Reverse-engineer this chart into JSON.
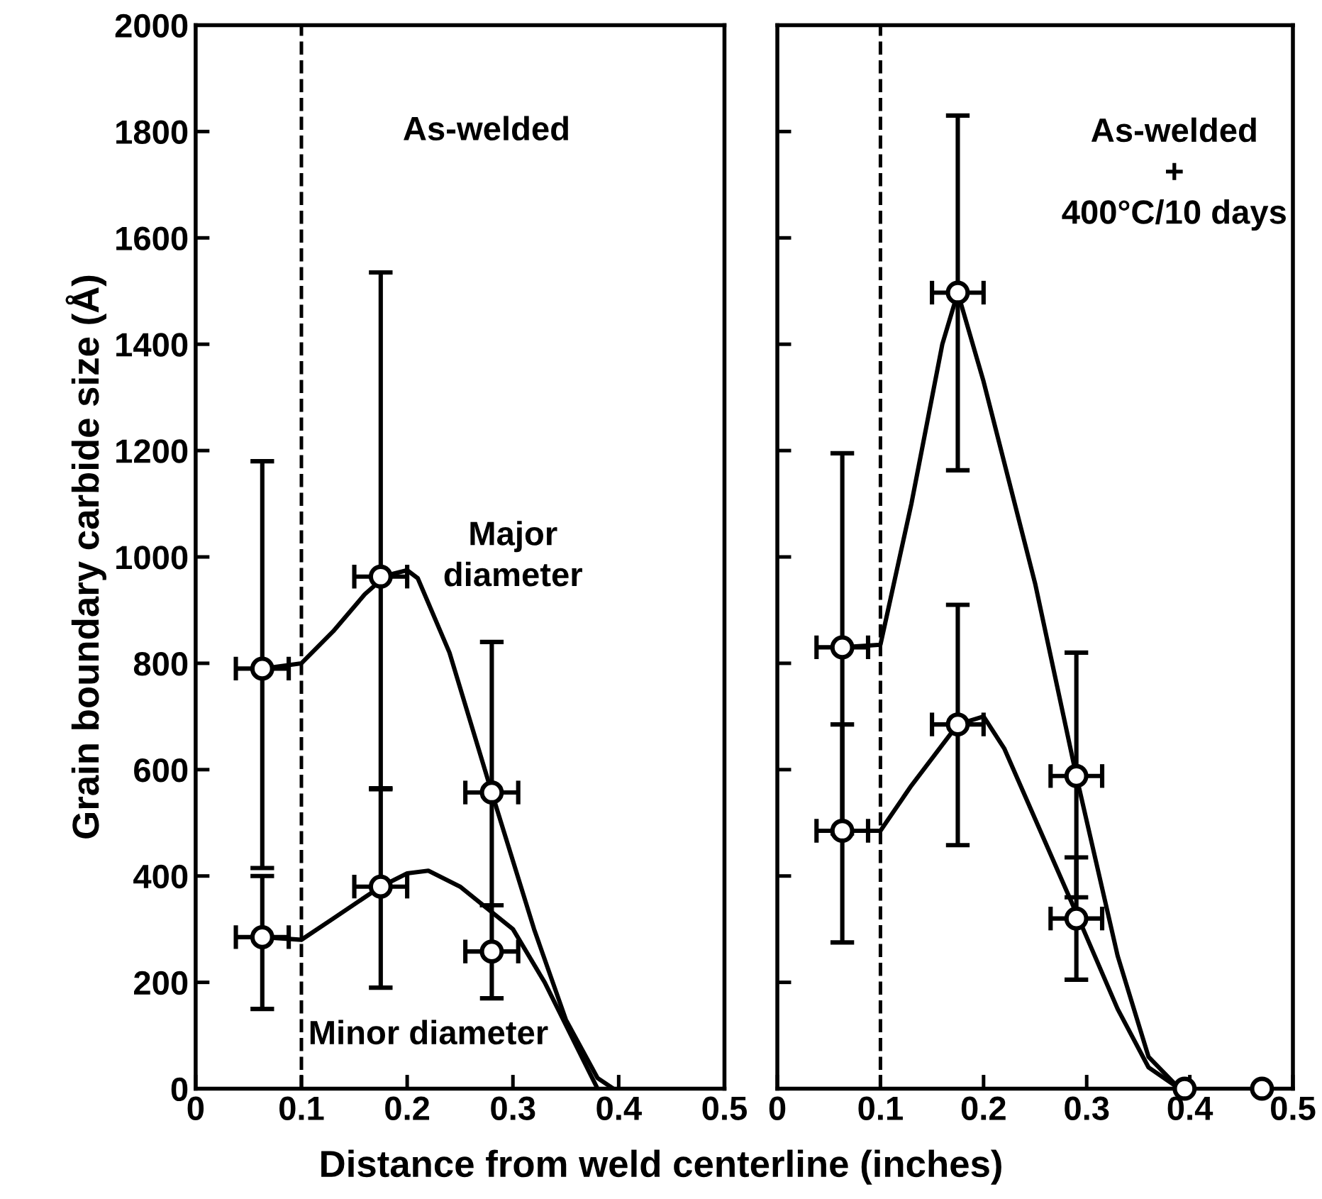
{
  "chart_data": [
    {
      "type": "line",
      "ylabel": "Grain boundary carbide size (Å)",
      "xlabel": "Distance from weld centerline (inches)",
      "xlim": [
        0,
        0.5
      ],
      "xticks": [
        0,
        {
          "value": 0.1,
          "label": "0.1"
        },
        {
          "value": 0.2,
          "label": "0.2"
        },
        {
          "value": 0.3,
          "label": "0.3"
        },
        {
          "value": 0.4,
          "label": "0.4"
        },
        {
          "value": 0.5,
          "label": "0.5"
        }
      ],
      "ylim": [
        0,
        2000
      ],
      "yticks": [
        0,
        200,
        400,
        600,
        800,
        1000,
        1200,
        1400,
        1600,
        1800,
        2000
      ],
      "grid": false,
      "ref_lines": [
        {
          "axis": "x",
          "value": 0.1,
          "color": "#000000",
          "line_style": "dashed"
        }
      ],
      "annotations": [
        "As-welded",
        "Major\ndiameter",
        "Minor diameter"
      ],
      "series": [
        {
          "color": "#000000",
          "x": [
            0.063,
            0.1,
            0.13,
            0.16,
            0.18,
            0.2,
            0.21,
            0.24,
            0.28,
            0.32,
            0.35,
            0.38,
            0.395
          ],
          "values": [
            790,
            800,
            860,
            930,
            965,
            975,
            960,
            820,
            557,
            300,
            130,
            20,
            0
          ]
        },
        {
          "color": "#000000",
          "x": [
            0.063,
            0.1,
            0.13,
            0.175,
            0.2,
            0.22,
            0.25,
            0.3,
            0.33,
            0.36,
            0.38
          ],
          "values": [
            285,
            280,
            320,
            380,
            405,
            410,
            380,
            300,
            200,
            80,
            0
          ]
        },
        {
          "type": "scatter",
          "marker": "circle",
          "color": "#000000",
          "x": [
            0.063,
            0.175,
            0.28
          ],
          "values": [
            790,
            963,
            557
          ],
          "errors": [
            [
              415,
              1180
            ],
            [
              565,
              1535
            ],
            [
              345,
              840
            ]
          ],
          "xerrors": [
            0.025,
            0.025,
            0.025
          ]
        },
        {
          "type": "scatter",
          "marker": "circle",
          "color": "#000000",
          "x": [
            0.063,
            0.175,
            0.28
          ],
          "values": [
            285,
            380,
            258
          ],
          "errors": [
            [
              150,
              400
            ],
            [
              190,
              563
            ],
            [
              170,
              345
            ]
          ],
          "xerrors": [
            0.025,
            0.025,
            0.025
          ]
        }
      ]
    },
    {
      "type": "line",
      "xlim": [
        0,
        0.5
      ],
      "xticks": [
        0,
        {
          "value": 0.1,
          "label": "0.1"
        },
        {
          "value": 0.2,
          "label": "0.2"
        },
        {
          "value": 0.3,
          "label": "0.3"
        },
        {
          "value": 0.4,
          "label": "0.4"
        },
        {
          "value": 0.5,
          "label": "0.5"
        }
      ],
      "ylim": [
        0,
        2000
      ],
      "yticks": [
        0,
        200,
        400,
        600,
        800,
        1000,
        1200,
        1400,
        1600,
        1800,
        2000
      ],
      "tick_labels": "x",
      "grid": false,
      "ref_lines": [
        {
          "axis": "x",
          "value": 0.1,
          "color": "#000000",
          "line_style": "dashed"
        }
      ],
      "annotations": [
        "As-welded\n+\n400°C/10 days"
      ],
      "series": [
        {
          "color": "#000000",
          "x": [
            0.063,
            0.1,
            0.13,
            0.16,
            0.175,
            0.2,
            0.25,
            0.29,
            0.33,
            0.36,
            0.39
          ],
          "values": [
            830,
            835,
            1100,
            1400,
            1497,
            1330,
            950,
            588,
            250,
            60,
            0
          ]
        },
        {
          "color": "#000000",
          "x": [
            0.063,
            0.1,
            0.13,
            0.175,
            0.2,
            0.22,
            0.29,
            0.33,
            0.36,
            0.39
          ],
          "values": [
            485,
            485,
            570,
            685,
            700,
            640,
            330,
            150,
            40,
            0
          ]
        },
        {
          "type": "scatter",
          "marker": "circle",
          "color": "#000000",
          "x": [
            0.063,
            0.175,
            0.29
          ],
          "values": [
            830,
            1497,
            588
          ],
          "errors": [
            [
              480,
              1195
            ],
            [
              1163,
              1830
            ],
            [
              360,
              820
            ]
          ],
          "xerrors": [
            0.025,
            0.025,
            0.025
          ]
        },
        {
          "type": "scatter",
          "marker": "circle",
          "color": "#000000",
          "x": [
            0.063,
            0.175,
            0.29
          ],
          "values": [
            485,
            685,
            320
          ],
          "errors": [
            [
              275,
              685
            ],
            [
              458,
              910
            ],
            [
              205,
              435
            ]
          ],
          "xerrors": [
            0.025,
            0.025,
            0.025
          ]
        },
        {
          "type": "scatter",
          "marker": "circle",
          "color": "#000000",
          "x": [
            0.395,
            0.47
          ],
          "values": [
            0,
            0
          ]
        }
      ]
    }
  ]
}
